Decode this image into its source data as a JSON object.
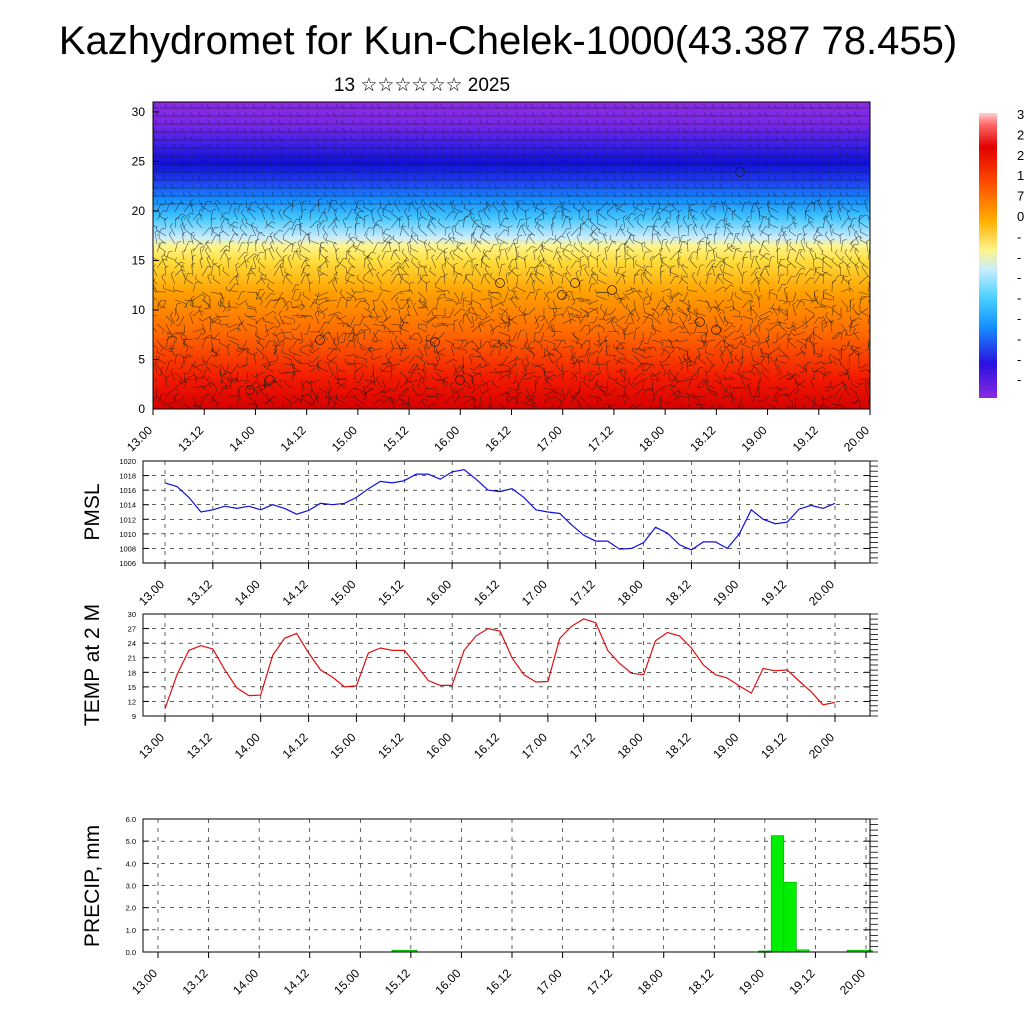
{
  "title": "Kazhydromet for Kun-Chelek-1000(43.387 78.455)",
  "subtitle": "13 ☆☆☆☆☆☆ 2025",
  "colors": {
    "pmsl_line": "#1010dd",
    "temp_line": "#dd1010",
    "precip_bar": "#00ee00"
  },
  "x_tick_labels": [
    "13.00",
    "13.12",
    "14.00",
    "14.12",
    "15.00",
    "15.12",
    "16.00",
    "16.12",
    "17.00",
    "17.12",
    "18.00",
    "18.12",
    "19.00",
    "19.12",
    "20.00"
  ],
  "colorbar_labels": [
    "3",
    "2",
    "2",
    "1",
    "7",
    "0",
    "-",
    "-",
    "-",
    "-",
    "-",
    "-",
    "-",
    "-"
  ],
  "chart_data": [
    {
      "type": "heatmap",
      "title": "",
      "ylim": [
        0,
        31
      ],
      "yticks": [
        "0",
        "5",
        "10",
        "15",
        "20",
        "25",
        "30"
      ],
      "note_visible": "filled color field with overlaid wind barbs"
    },
    {
      "type": "line",
      "ylabel": "PMSL",
      "ylim": [
        1006,
        1020
      ],
      "yticks": [
        "1006",
        "1008",
        "1010",
        "1012",
        "1014",
        "1016",
        "1018",
        "1020"
      ],
      "series": [
        {
          "values": [
            1017,
            1016.5,
            1015,
            1013,
            1013.3,
            1013.8,
            1013.5,
            1013.8,
            1013.3,
            1014,
            1013.5,
            1012.7,
            1013.2,
            1014.2,
            1014,
            1014.2,
            1015,
            1016.2,
            1017.2,
            1017,
            1017.3,
            1018.2,
            1018.2,
            1017.5,
            1018.5,
            1018.8,
            1017.5,
            1016,
            1015.8,
            1016.2,
            1015,
            1013.3,
            1013,
            1012.8,
            1011.2,
            1009.8,
            1009,
            1009,
            1007.9,
            1008,
            1008.8,
            1010.9,
            1010.1,
            1008.5,
            1007.8,
            1008.9,
            1008.9,
            1008,
            1010,
            1013.3,
            1012,
            1011.4,
            1011.6,
            1013.4,
            1013.9,
            1013.5,
            1014.2
          ]
        }
      ]
    },
    {
      "type": "line",
      "ylabel": "TEMP at 2 M",
      "ylim": [
        9,
        30
      ],
      "yticks": [
        "9",
        "12",
        "15",
        "18",
        "21",
        "24",
        "27",
        "30"
      ],
      "series": [
        {
          "values": [
            10.5,
            17.5,
            22.5,
            23.5,
            22.8,
            18.5,
            14.8,
            13.2,
            13.3,
            21.5,
            25,
            26,
            22,
            18.5,
            17,
            15,
            15.2,
            22,
            23,
            22.5,
            22.5,
            19.5,
            16.3,
            15.3,
            15.3,
            22.5,
            25.5,
            27,
            26.5,
            21,
            17.5,
            16,
            16.1,
            25,
            27.5,
            29,
            28.2,
            22.5,
            19.8,
            17.8,
            17.5,
            24.5,
            26.2,
            25.5,
            23,
            19.5,
            17.5,
            16.8,
            15.2,
            13.7,
            18.8,
            18.3,
            18.5,
            16.2,
            14,
            11.3,
            11.8
          ]
        }
      ]
    },
    {
      "type": "bar",
      "ylabel": "PRECIP, mm",
      "ylim": [
        0,
        6
      ],
      "yticks": [
        "0.0",
        "1.0",
        "2.0",
        "3.0",
        "4.0",
        "5.0",
        "6.0"
      ],
      "series": [
        {
          "values": [
            0,
            0,
            0,
            0,
            0,
            0,
            0,
            0,
            0,
            0,
            0,
            0,
            0,
            0,
            0,
            0,
            0,
            0,
            0,
            0.08,
            0.08,
            0,
            0,
            0,
            0,
            0,
            0,
            0,
            0,
            0,
            0,
            0,
            0,
            0,
            0,
            0,
            0,
            0,
            0,
            0,
            0,
            0,
            0,
            0,
            0,
            0,
            0,
            0,
            0.05,
            5.25,
            3.15,
            0.1,
            0,
            0,
            0,
            0.08,
            0.08
          ]
        }
      ]
    }
  ]
}
